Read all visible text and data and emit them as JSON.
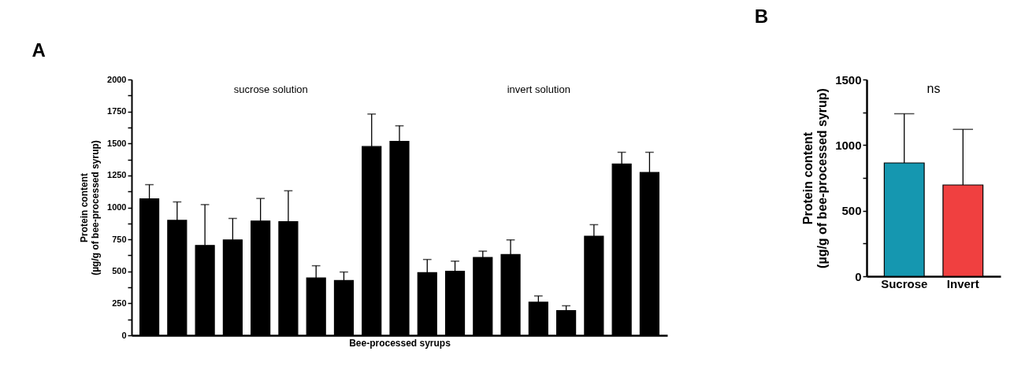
{
  "chart_data": [
    {
      "type": "bar",
      "title": "A",
      "xlabel": "Bee-processed syrups",
      "ylabel": "Protein content\n(µg/g of bee-processed syrup)",
      "categories": [
        null,
        null,
        null,
        null,
        null,
        null,
        null,
        null,
        null,
        null,
        null,
        null,
        null,
        null,
        null,
        null,
        null,
        null,
        null
      ],
      "values": [
        1067,
        899,
        703,
        746,
        894,
        888,
        449,
        429,
        1476,
        1517,
        490,
        501,
        609,
        632,
        259,
        193,
        775,
        1339,
        1274
      ],
      "errors": [
        [
          1067,
          1178
        ],
        [
          899,
          1043
        ],
        [
          703,
          1022
        ],
        [
          746,
          914
        ],
        [
          894,
          1070
        ],
        [
          888,
          1130
        ],
        [
          449,
          544
        ],
        [
          429,
          495
        ],
        [
          1476,
          1730
        ],
        [
          1517,
          1638
        ],
        [
          490,
          593
        ],
        [
          501,
          580
        ],
        [
          609,
          658
        ],
        [
          632,
          746
        ],
        [
          259,
          308
        ],
        [
          193,
          231
        ],
        [
          775,
          865
        ],
        [
          1339,
          1431
        ],
        [
          1274,
          1431
        ]
      ],
      "color": "#000000",
      "ylim": [
        0,
        2000
      ],
      "yticks": [
        0,
        {
          "value": 125,
          "label": null
        },
        250,
        {
          "value": 375,
          "label": null
        },
        500,
        {
          "value": 625,
          "label": null
        },
        750,
        {
          "value": 875,
          "label": null
        },
        1000,
        {
          "value": 1125,
          "label": null
        },
        1250,
        {
          "value": 1375,
          "label": null
        },
        1500,
        {
          "value": 1625,
          "label": null
        },
        1750,
        {
          "value": 1875,
          "label": null
        },
        2000
      ],
      "tick_labels": "y",
      "annotations": [
        "sucrose solution",
        "invert solution"
      ],
      "grid": false
    },
    {
      "type": "bar",
      "title": "B",
      "ylabel": "Protein content\n(µg/g of bee-processed syrup)",
      "categories": [
        "Sucrose",
        "Invert"
      ],
      "values": [
        864,
        696
      ],
      "errors": [
        [
          864,
          1239
        ],
        [
          696,
          1120
        ]
      ],
      "colors": [
        "#1597b0",
        "#f04040"
      ],
      "ylim": [
        0,
        1500
      ],
      "yticks": [
        0,
        {
          "value": 250,
          "label": null
        },
        500,
        {
          "value": 750,
          "label": null
        },
        1000,
        {
          "value": 1250,
          "label": null
        },
        1500
      ],
      "annotations": [
        "ns"
      ],
      "grid": false
    }
  ]
}
